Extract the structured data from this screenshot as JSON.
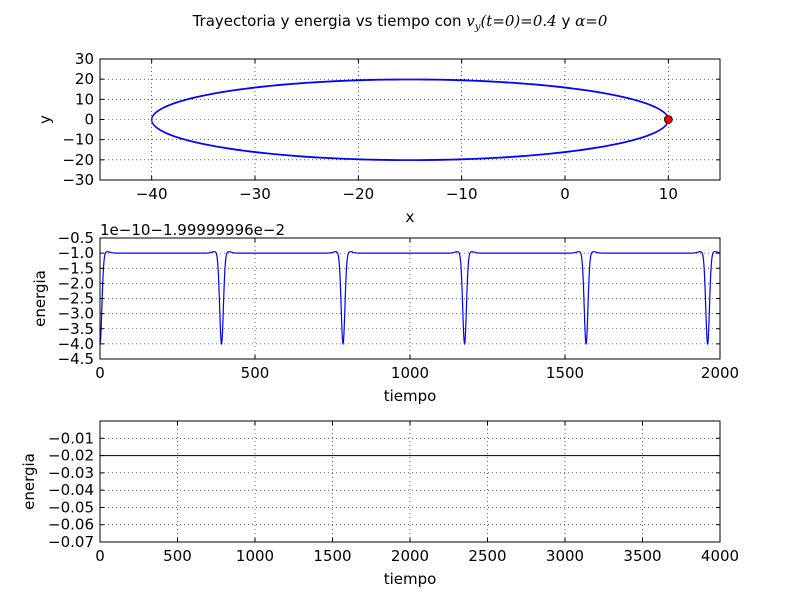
{
  "figure": {
    "title_prefix": "Trayectoria y energia vs tiempo con ",
    "title_math1": "v",
    "title_math1_sub": "y",
    "title_math1_rest": "(t=0)=0.4",
    "title_mid": " y  ",
    "title_math2": "α=0",
    "colors": {
      "line": "#0000ff",
      "marker": "#ff0000",
      "grid": "#000000"
    }
  },
  "chart_data": [
    {
      "type": "line",
      "name": "trajectory",
      "xlabel": "x",
      "ylabel": "y",
      "xlim": [
        -45,
        15
      ],
      "ylim": [
        -30,
        30
      ],
      "xticks": [
        -40,
        -30,
        -20,
        -10,
        0,
        10
      ],
      "yticks": [
        -30,
        -20,
        -10,
        0,
        10,
        20,
        30
      ],
      "xtick_labels": [
        "−40",
        "−30",
        "−20",
        "−10",
        "0",
        "10"
      ],
      "ytick_labels": [
        "−30",
        "−20",
        "−10",
        "0",
        "10",
        "20",
        "30"
      ],
      "grid": true,
      "ellipse": {
        "x_min": -40,
        "x_max": 10,
        "y_amplitude": 20
      },
      "marker_point": {
        "x": 10,
        "y": 0
      }
    },
    {
      "type": "line",
      "name": "energy-zoom",
      "xlabel": "tiempo",
      "ylabel": "energia",
      "offset_text": "1e−10−1.99999996e−2",
      "xlim": [
        0,
        2000
      ],
      "ylim": [
        -4.5,
        -0.5
      ],
      "xticks": [
        0,
        500,
        1000,
        1500,
        2000
      ],
      "yticks": [
        -4.5,
        -4.0,
        -3.5,
        -3.0,
        -2.5,
        -2.0,
        -1.5,
        -1.0,
        -0.5
      ],
      "xtick_labels": [
        "0",
        "500",
        "1000",
        "1500",
        "2000"
      ],
      "ytick_labels": [
        "−4.5",
        "−4.0",
        "−3.5",
        "−3.0",
        "−2.5",
        "−2.0",
        "−1.5",
        "−1.0",
        "−0.5"
      ],
      "grid": true,
      "baseline": -1.0,
      "bump": -0.95,
      "dip_min": -4.0,
      "dip_times": [
        0,
        392,
        784,
        1176,
        1568,
        1960
      ]
    },
    {
      "type": "line",
      "name": "energy-full",
      "xlabel": "tiempo",
      "ylabel": "energia",
      "xlim": [
        0,
        4000
      ],
      "ylim": [
        -0.07,
        0.0
      ],
      "xticks": [
        0,
        500,
        1000,
        1500,
        2000,
        2500,
        3000,
        3500,
        4000
      ],
      "yticks": [
        -0.07,
        -0.06,
        -0.05,
        -0.04,
        -0.03,
        -0.02,
        -0.01
      ],
      "xtick_labels": [
        "0",
        "500",
        "1000",
        "1500",
        "2000",
        "2500",
        "3000",
        "3500",
        "4000"
      ],
      "ytick_labels": [
        "−0.07",
        "−0.06",
        "−0.05",
        "−0.04",
        "−0.03",
        "−0.02",
        "−0.01"
      ],
      "grid": true,
      "constant_value": -0.02
    }
  ]
}
